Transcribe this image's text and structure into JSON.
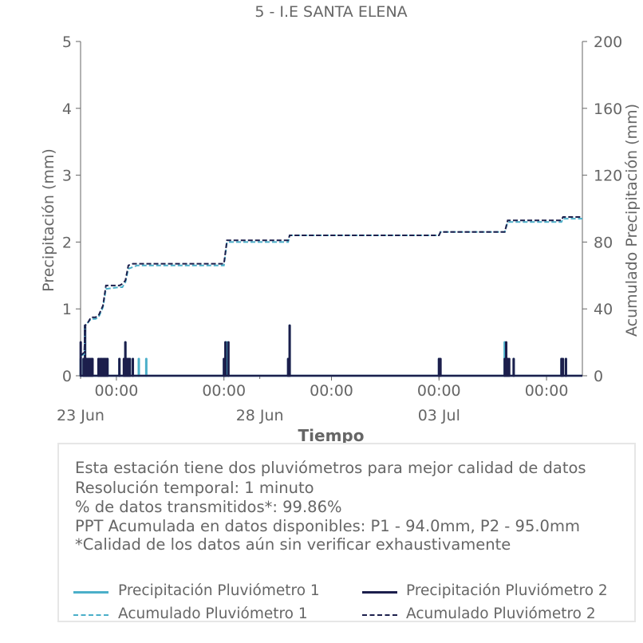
{
  "chart_data": {
    "type": "line",
    "title": "5 - I.E SANTA ELENA",
    "xlabel": "Tiempo",
    "ylabel_left": "Precipitación (mm)",
    "ylabel_right": "Acumulado Precipitación (mm)",
    "ylim_left": [
      0,
      5
    ],
    "ylim_right": [
      0,
      200
    ],
    "yticks_left": [
      "0",
      "1",
      "2",
      "3",
      "4",
      "5"
    ],
    "yticks_right": [
      "0",
      "40",
      "80",
      "120",
      "160",
      "200"
    ],
    "xlim": [
      "2025-06-23 00:00",
      "2025-07-07 00:00"
    ],
    "xticks": [
      {
        "x": "2025-06-24 00:00",
        "label": "00:00"
      },
      {
        "x": "2025-06-27 00:00",
        "label": "00:00"
      },
      {
        "x": "2025-06-30 00:00",
        "label": "00:00"
      },
      {
        "x": "2025-07-03 00:00",
        "label": "00:00"
      },
      {
        "x": "2025-07-06 00:00",
        "label": "00:00"
      }
    ],
    "date_labels": [
      {
        "x": "2025-06-23 00:00",
        "label": "23 Jun"
      },
      {
        "x": "2025-06-28 00:00",
        "label": "28 Jun"
      },
      {
        "x": "2025-07-03 00:00",
        "label": "03 Jul"
      }
    ],
    "grid": false,
    "series": [
      {
        "name": "Precipitación Pluviómetro 1",
        "color": "#4bafc9",
        "style": "solid",
        "axis": "left",
        "points": [
          [
            "2025-06-23 00:05",
            0.25
          ],
          [
            "2025-06-23 02:00",
            0.25
          ],
          [
            "2025-06-23 03:00",
            0.75
          ],
          [
            "2025-06-23 04:00",
            0.25
          ],
          [
            "2025-06-23 06:00",
            0.25
          ],
          [
            "2025-06-23 07:30",
            0.25
          ],
          [
            "2025-06-23 12:00",
            0.25
          ],
          [
            "2025-06-23 14:00",
            0.25
          ],
          [
            "2025-06-23 16:00",
            0.25
          ],
          [
            "2025-06-23 18:00",
            0.25
          ],
          [
            "2025-06-24 02:00",
            0.25
          ],
          [
            "2025-06-24 06:00",
            0.5
          ],
          [
            "2025-06-24 08:00",
            0.25
          ],
          [
            "2025-06-24 09:00",
            0.25
          ],
          [
            "2025-06-24 11:00",
            0.25
          ],
          [
            "2025-06-24 15:00",
            0.25
          ],
          [
            "2025-06-24 20:00",
            0.25
          ],
          [
            "2025-06-27 00:00",
            0.25
          ],
          [
            "2025-06-27 01:00",
            0.5
          ],
          [
            "2025-06-27 02:00",
            0.5
          ],
          [
            "2025-06-28 19:00",
            0.25
          ],
          [
            "2025-06-28 20:00",
            0.75
          ],
          [
            "2025-07-03 00:00",
            0.25
          ],
          [
            "2025-07-04 20:00",
            0.5
          ],
          [
            "2025-07-04 22:00",
            0.25
          ],
          [
            "2025-07-05 02:00",
            0.25
          ],
          [
            "2025-07-06 10:00",
            0.25
          ],
          [
            "2025-07-06 13:00",
            0.25
          ]
        ]
      },
      {
        "name": "Precipitación Pluviómetro 2",
        "color": "#1c1f4c",
        "style": "solid",
        "axis": "left",
        "points": [
          [
            "2025-06-23 00:05",
            0.5
          ],
          [
            "2025-06-23 02:00",
            0.25
          ],
          [
            "2025-06-23 03:00",
            0.75
          ],
          [
            "2025-06-23 04:00",
            0.25
          ],
          [
            "2025-06-23 05:00",
            0.25
          ],
          [
            "2025-06-23 06:00",
            0.25
          ],
          [
            "2025-06-23 07:00",
            0.25
          ],
          [
            "2025-06-23 08:00",
            0.25
          ],
          [
            "2025-06-23 12:00",
            0.25
          ],
          [
            "2025-06-23 13:00",
            0.25
          ],
          [
            "2025-06-23 14:00",
            0.25
          ],
          [
            "2025-06-23 15:00",
            0.25
          ],
          [
            "2025-06-23 16:00",
            0.25
          ],
          [
            "2025-06-23 17:00",
            0.25
          ],
          [
            "2025-06-23 18:00",
            0.25
          ],
          [
            "2025-06-24 02:00",
            0.25
          ],
          [
            "2025-06-24 05:00",
            0.25
          ],
          [
            "2025-06-24 06:00",
            0.5
          ],
          [
            "2025-06-24 07:00",
            0.25
          ],
          [
            "2025-06-24 08:00",
            0.25
          ],
          [
            "2025-06-24 09:00",
            0.25
          ],
          [
            "2025-06-24 11:00",
            0.25
          ],
          [
            "2025-06-27 00:00",
            0.25
          ],
          [
            "2025-06-27 01:00",
            0.5
          ],
          [
            "2025-06-27 03:00",
            0.5
          ],
          [
            "2025-06-28 19:00",
            0.25
          ],
          [
            "2025-06-28 20:00",
            0.75
          ],
          [
            "2025-07-03 00:00",
            0.25
          ],
          [
            "2025-07-03 01:00",
            0.25
          ],
          [
            "2025-07-04 20:00",
            0.25
          ],
          [
            "2025-07-04 21:00",
            0.5
          ],
          [
            "2025-07-04 22:00",
            0.25
          ],
          [
            "2025-07-04 23:00",
            0.25
          ],
          [
            "2025-07-05 02:00",
            0.25
          ],
          [
            "2025-07-06 10:00",
            0.25
          ],
          [
            "2025-07-06 11:00",
            0.25
          ],
          [
            "2025-07-06 13:00",
            0.25
          ]
        ]
      },
      {
        "name": "Acumulado Pluviómetro 1",
        "color": "#4bafc9",
        "style": "dashed",
        "axis": "right",
        "points": [
          [
            "2025-06-23 00:00",
            12
          ],
          [
            "2025-06-23 02:30",
            13
          ],
          [
            "2025-06-23 03:00",
            30
          ],
          [
            "2025-06-23 05:00",
            32
          ],
          [
            "2025-06-23 07:00",
            34
          ],
          [
            "2025-06-23 10:00",
            34
          ],
          [
            "2025-06-23 12:00",
            35
          ],
          [
            "2025-06-23 15:00",
            41
          ],
          [
            "2025-06-23 17:00",
            52
          ],
          [
            "2025-06-24 02:00",
            53
          ],
          [
            "2025-06-24 04:00",
            53
          ],
          [
            "2025-06-24 06:00",
            56
          ],
          [
            "2025-06-24 08:00",
            64
          ],
          [
            "2025-06-24 11:00",
            65
          ],
          [
            "2025-06-24 14:00",
            66
          ],
          [
            "2025-06-27 00:00",
            66
          ],
          [
            "2025-06-27 01:00",
            73
          ],
          [
            "2025-06-27 02:00",
            80
          ],
          [
            "2025-06-28 19:00",
            80
          ],
          [
            "2025-06-28 20:00",
            84
          ],
          [
            "2025-07-03 00:00",
            84
          ],
          [
            "2025-07-03 01:00",
            86
          ],
          [
            "2025-07-04 20:00",
            86
          ],
          [
            "2025-07-04 22:00",
            92
          ],
          [
            "2025-07-06 10:00",
            92
          ],
          [
            "2025-07-06 11:00",
            94
          ],
          [
            "2025-07-07 00:00",
            94
          ]
        ]
      },
      {
        "name": "Acumulado Pluviómetro 2",
        "color": "#1c1f4c",
        "style": "dashed",
        "axis": "right",
        "points": [
          [
            "2025-06-23 00:00",
            12
          ],
          [
            "2025-06-23 02:30",
            14
          ],
          [
            "2025-06-23 03:00",
            30
          ],
          [
            "2025-06-23 05:00",
            32
          ],
          [
            "2025-06-23 07:00",
            35
          ],
          [
            "2025-06-23 10:00",
            35
          ],
          [
            "2025-06-23 12:00",
            36
          ],
          [
            "2025-06-23 15:00",
            42
          ],
          [
            "2025-06-23 17:00",
            54
          ],
          [
            "2025-06-24 02:00",
            54
          ],
          [
            "2025-06-24 04:00",
            55
          ],
          [
            "2025-06-24 06:00",
            57
          ],
          [
            "2025-06-24 08:00",
            66
          ],
          [
            "2025-06-24 11:00",
            67
          ],
          [
            "2025-06-24 14:00",
            67
          ],
          [
            "2025-06-27 00:00",
            67
          ],
          [
            "2025-06-27 01:00",
            74
          ],
          [
            "2025-06-27 02:00",
            81
          ],
          [
            "2025-06-28 19:00",
            81
          ],
          [
            "2025-06-28 20:00",
            84
          ],
          [
            "2025-07-03 00:00",
            84
          ],
          [
            "2025-07-03 01:00",
            86
          ],
          [
            "2025-07-04 20:00",
            86
          ],
          [
            "2025-07-04 22:00",
            93
          ],
          [
            "2025-07-06 10:00",
            93
          ],
          [
            "2025-07-06 11:00",
            95
          ],
          [
            "2025-07-07 00:00",
            95
          ]
        ]
      }
    ]
  },
  "info": {
    "line1": "Esta estación tiene dos pluviómetros para mejor calidad de datos",
    "line2": "Resolución temporal: 1 minuto",
    "line3": "% de datos transmitidos*: 99.86%",
    "line4": "PPT Acumulada en datos disponibles: P1 - 94.0mm, P2 - 95.0mm",
    "line5": "*Calidad de los datos aún sin verificar exhaustivamente"
  },
  "legend": {
    "p1": "Precipitación Pluviómetro 1",
    "p2": "Precipitación Pluviómetro 2",
    "a1": "Acumulado Pluviómetro 1",
    "a2": "Acumulado Pluviómetro 2"
  }
}
